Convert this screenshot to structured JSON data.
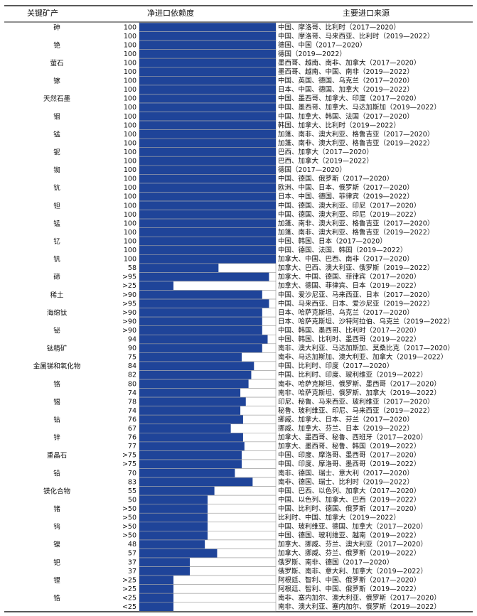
{
  "table": {
    "headers": [
      "关键矿产",
      "净进口依赖度",
      "主要进口来源"
    ],
    "rows": [
      {
        "mineral": "砷",
        "entries": [
          {
            "dependence": 100,
            "source": "中国、摩洛哥、比利时（2017—2020）"
          },
          {
            "dependence": 100,
            "source": "中国、摩洛哥、马来西亚、比利时（2019—2022）"
          }
        ]
      },
      {
        "mineral": "铯",
        "entries": [
          {
            "dependence": 100,
            "source": "德国、中国（2017—2020）"
          },
          {
            "dependence": 100,
            "source": "德国（2019—2022）"
          }
        ]
      },
      {
        "mineral": "萤石",
        "entries": [
          {
            "dependence": 100,
            "source": "墨西哥、越南、南非、加拿大（2017—2020）"
          },
          {
            "dependence": 100,
            "source": "墨西哥、越南、中国、南非（2019—2022）"
          }
        ]
      },
      {
        "mineral": "镓",
        "entries": [
          {
            "dependence": 100,
            "source": "中国、英国、德国、乌克兰（2017—2020）"
          },
          {
            "dependence": 100,
            "source": "日本、中国、德国、加拿大（2019—2022）"
          }
        ]
      },
      {
        "mineral": "天然石墨",
        "entries": [
          {
            "dependence": 100,
            "source": "中国、墨西哥、加拿大、印度（2017—2020）"
          },
          {
            "dependence": 100,
            "source": "中国、墨西哥、加拿大、马达加斯加（2019—2022）"
          }
        ]
      },
      {
        "mineral": "铟",
        "entries": [
          {
            "dependence": 100,
            "source": "中国、加拿大、韩国、法国（2017—2020）"
          },
          {
            "dependence": 100,
            "source": "韩国、加拿大、比利时（2019—2022）"
          }
        ]
      },
      {
        "mineral": "锰",
        "entries": [
          {
            "dependence": 100,
            "source": "加蓬、南非、澳大利亚、格鲁吉亚（2017—2020）"
          },
          {
            "dependence": 100,
            "source": "加蓬、南非、澳大利亚、格鲁吉亚（2019—2022）"
          }
        ]
      },
      {
        "mineral": "铌",
        "entries": [
          {
            "dependence": 100,
            "source": "巴西、加拿大（2017—2020）"
          },
          {
            "dependence": 100,
            "source": "巴西、加拿大（2019—2022）"
          }
        ]
      },
      {
        "mineral": "铷",
        "entries": [
          {
            "dependence": 100,
            "source": "德国（2017—2020）"
          },
          {
            "dependence": 100,
            "source": "中国、德国、俄罗斯（2017—2020）"
          }
        ]
      },
      {
        "mineral": "钪",
        "entries": [
          {
            "dependence": 100,
            "source": "欧洲、中国、日本、俄罗斯（2017—2020）"
          },
          {
            "dependence": 100,
            "source": "日本、中国、德国、菲律宾（2019—2022）"
          }
        ]
      },
      {
        "mineral": "钽",
        "entries": [
          {
            "dependence": 100,
            "source": "中国、德国、澳大利亚、印尼（2017—2020）"
          },
          {
            "dependence": 100,
            "source": "中国、德国、澳大利亚、印尼（2019—2022）"
          }
        ]
      },
      {
        "mineral": "锰",
        "entries": [
          {
            "dependence": 100,
            "source": "加蓬、南非、澳大利亚、格鲁吉亚（2017—2020）"
          },
          {
            "dependence": 100,
            "source": "加蓬、南非、澳大利亚、格鲁吉亚（2019—2022）"
          }
        ]
      },
      {
        "mineral": "钇",
        "entries": [
          {
            "dependence": 100,
            "source": "中国、韩国、日本（2017—2020）"
          },
          {
            "dependence": 100,
            "source": "中国、德国、法国、韩国（2019—2022）"
          }
        ]
      },
      {
        "mineral": "钒",
        "entries": [
          {
            "dependence": 100,
            "source": "加拿大、中国、巴西、南非（2017—2020）"
          },
          {
            "dependence": 58,
            "source": "加拿大、巴西、澳大利亚、俄罗斯（2019—2022）"
          }
        ]
      },
      {
        "mineral": "碲",
        "entries": [
          {
            "dependence": {
              "value": 95,
              "label": ">95"
            },
            "source": "加拿大、中国、德国、菲律宾（2017—2020）"
          },
          {
            "dependence": {
              "value": 25,
              "label": ">25"
            },
            "source": "加拿大、德国、菲律宾、日本（2019—2022）"
          }
        ]
      },
      {
        "mineral": "稀土",
        "entries": [
          {
            "dependence": {
              "value": 90,
              "label": ">90"
            },
            "source": "中国、爱沙尼亚、马来西亚、日本（2017—2020）"
          },
          {
            "dependence": {
              "value": 95,
              "label": ">95"
            },
            "source": "中国、马来西亚、日本、爱沙尼亚（2019—2022）"
          }
        ]
      },
      {
        "mineral": "海绵钛",
        "entries": [
          {
            "dependence": {
              "value": 90,
              "label": ">90"
            },
            "source": "日本、哈萨克斯坦、乌克兰（2017—2020）"
          },
          {
            "dependence": {
              "value": 90,
              "label": ">90"
            },
            "source": "日本、哈萨克斯坦、沙特阿拉伯、乌克兰（2019—2022）"
          }
        ]
      },
      {
        "mineral": "铋",
        "entries": [
          {
            "dependence": {
              "value": 90,
              "label": ">90"
            },
            "source": "中国、韩国、墨西哥、比利时（2017—2020）"
          },
          {
            "dependence": 94,
            "source": "中国、韩国、比利时、墨西哥（2019—2022）"
          }
        ]
      },
      {
        "mineral": "钛精矿",
        "entries": [
          {
            "dependence": 90,
            "source": "南非、澳大利亚、马达加斯加、莫桑比克（2017—2020）"
          },
          {
            "dependence": 75,
            "source": "南非、马达加斯加、澳大利亚、加拿大（2019—2022）"
          }
        ]
      },
      {
        "mineral": "金属锑和氧化物",
        "entries": [
          {
            "dependence": 84,
            "source": "中国、比利时、印度（2017—2020）"
          },
          {
            "dependence": 82,
            "source": "中国、比利时、印度、玻利维亚（2019—2022）"
          }
        ]
      },
      {
        "mineral": "铬",
        "entries": [
          {
            "dependence": 80,
            "source": "南非、哈萨克斯坦、俄罗斯、墨西哥（2017—2020）"
          },
          {
            "dependence": 74,
            "source": "南非、哈萨克斯坦、俄罗斯、加拿大（2019—2022）"
          }
        ]
      },
      {
        "mineral": "锡",
        "entries": [
          {
            "dependence": 78,
            "source": "印尼、秘鲁、马来西亚、玻利维亚（2017—2020）"
          },
          {
            "dependence": 74,
            "source": "秘鲁、玻利维亚、印尼、马来西亚（2019—2022）"
          }
        ]
      },
      {
        "mineral": "钴",
        "entries": [
          {
            "dependence": 76,
            "source": "挪威、加拿大、日本、芬兰（2017—2020）"
          },
          {
            "dependence": 67,
            "source": "挪威、加拿大、芬兰、日本（2019—2022）"
          }
        ]
      },
      {
        "mineral": "锌",
        "entries": [
          {
            "dependence": 76,
            "source": "加拿大、墨西哥、秘鲁、西班牙（2017—2020）"
          },
          {
            "dependence": 77,
            "source": "加拿大、墨西哥、秘鲁、韩国（2019—2022）"
          }
        ]
      },
      {
        "mineral": "重晶石",
        "entries": [
          {
            "dependence": {
              "value": 75,
              "label": ">75"
            },
            "source": "中国、印度、摩洛哥、墨西哥（2017—2020）"
          },
          {
            "dependence": {
              "value": 75,
              "label": ">75"
            },
            "source": "中国、印度、摩洛哥、墨西哥（2019—2022）"
          }
        ]
      },
      {
        "mineral": "铅",
        "entries": [
          {
            "dependence": 70,
            "source": "南非、德国、瑞士、意大利（2017—2020）"
          },
          {
            "dependence": 83,
            "source": "南非、德国、瑞士、比利时（2019—2022）"
          }
        ]
      },
      {
        "mineral": "镁化合物",
        "entries": [
          {
            "dependence": 55,
            "source": "中国、巴西、以色列、加拿大（2017—2020）"
          },
          {
            "dependence": 50,
            "source": "中国、以色列、加拿大、巴西（2019—2022）"
          }
        ]
      },
      {
        "mineral": "锗",
        "entries": [
          {
            "dependence": {
              "value": 50,
              "label": ">50"
            },
            "source": "中国、比利时、德国、俄罗斯（2017—2020）"
          },
          {
            "dependence": {
              "value": 50,
              "label": ">50"
            },
            "source": "比利时、中国、加拿大（2019—2022）"
          }
        ]
      },
      {
        "mineral": "钨",
        "entries": [
          {
            "dependence": {
              "value": 50,
              "label": ">50"
            },
            "source": "中国、玻利维亚、德国、加拿大（2017—2020）"
          },
          {
            "dependence": {
              "value": 50,
              "label": ">50"
            },
            "source": "中国、德国、玻利维亚、越南（2019—2022）"
          }
        ]
      },
      {
        "mineral": "镍",
        "entries": [
          {
            "dependence": 48,
            "source": "加拿大、挪威、芬兰、澳大利亚（2017—2020）"
          },
          {
            "dependence": 57,
            "source": "加拿大、挪威、芬兰、俄罗斯（2019—2022）"
          }
        ]
      },
      {
        "mineral": "钯",
        "entries": [
          {
            "dependence": 37,
            "source": "俄罗斯、南非、德国（2017—2020）"
          },
          {
            "dependence": 37,
            "source": "俄罗斯、南非、意大利、加拿大（2019—2022）"
          }
        ]
      },
      {
        "mineral": "锂",
        "entries": [
          {
            "dependence": {
              "value": 25,
              "label": ">25"
            },
            "source": "阿根廷、智利、中国、俄罗斯（2017—2020）"
          },
          {
            "dependence": {
              "value": 25,
              "label": ">25"
            },
            "source": "阿根廷、智利、中国、俄罗斯（2019—2022）"
          }
        ]
      },
      {
        "mineral": "锆",
        "entries": [
          {
            "dependence": {
              "value": 25,
              "label": "<25"
            },
            "source": "南非、塞内加尔、澳大利亚、俄罗斯（2017—2020）"
          },
          {
            "dependence": {
              "value": 25,
              "label": "<25"
            },
            "source": "南非、澳大利亚、塞内加尔、俄罗斯（2019—2022）"
          }
        ]
      }
    ]
  }
}
